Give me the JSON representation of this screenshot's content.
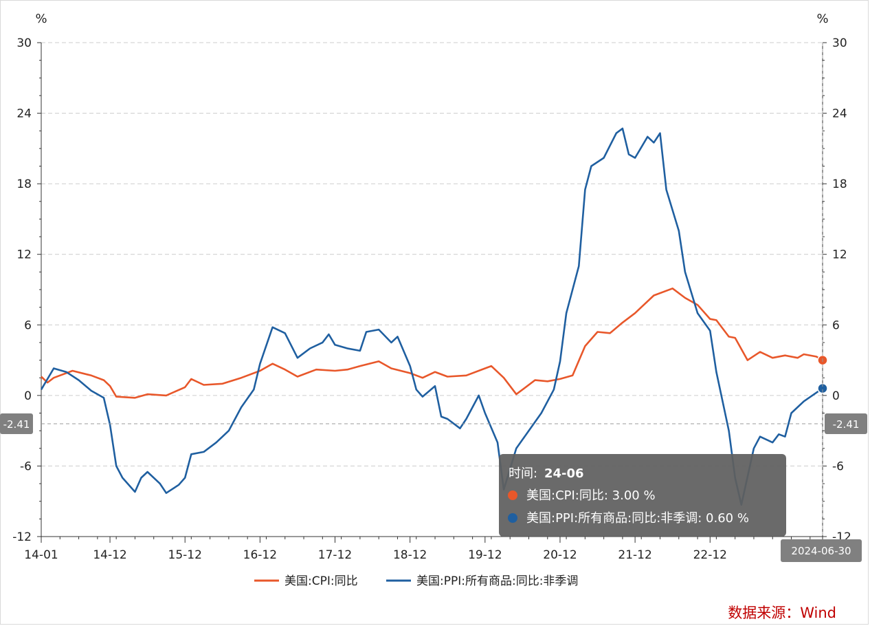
{
  "chart_data": {
    "type": "line",
    "unit_left": "%",
    "unit_right": "%",
    "yticks": [
      30,
      24,
      18,
      12,
      6,
      0,
      -6,
      -12
    ],
    "ylim": [
      -12,
      30
    ],
    "xlim": [
      "2014-01",
      "2024-06"
    ],
    "xticks": [
      {
        "label": "14-01",
        "x": "2014-01"
      },
      {
        "label": "14-12",
        "x": "2014-12"
      },
      {
        "label": "15-12",
        "x": "2015-12"
      },
      {
        "label": "16-12",
        "x": "2016-12"
      },
      {
        "label": "17-12",
        "x": "2017-12"
      },
      {
        "label": "18-12",
        "x": "2018-12"
      },
      {
        "label": "19-12",
        "x": "2019-12"
      },
      {
        "label": "20-12",
        "x": "2020-12"
      },
      {
        "label": "21-12",
        "x": "2021-12"
      },
      {
        "label": "22-12",
        "x": "2022-12"
      },
      {
        "label": "24-06",
        "x": "2024-06"
      }
    ],
    "grid": true,
    "legend": "bottom-center",
    "series": [
      {
        "name": "美国:CPI:同比",
        "color": "#e8572a",
        "points": [
          [
            "2014-01",
            1.6
          ],
          [
            "2014-02",
            1.1
          ],
          [
            "2014-03",
            1.5
          ],
          [
            "2014-06",
            2.1
          ],
          [
            "2014-09",
            1.7
          ],
          [
            "2014-11",
            1.3
          ],
          [
            "2014-12",
            0.8
          ],
          [
            "2015-01",
            -0.1
          ],
          [
            "2015-04",
            -0.2
          ],
          [
            "2015-06",
            0.1
          ],
          [
            "2015-09",
            0.0
          ],
          [
            "2015-12",
            0.7
          ],
          [
            "2016-01",
            1.4
          ],
          [
            "2016-03",
            0.9
          ],
          [
            "2016-06",
            1.0
          ],
          [
            "2016-09",
            1.5
          ],
          [
            "2016-12",
            2.1
          ],
          [
            "2017-02",
            2.7
          ],
          [
            "2017-04",
            2.2
          ],
          [
            "2017-06",
            1.6
          ],
          [
            "2017-09",
            2.2
          ],
          [
            "2017-12",
            2.1
          ],
          [
            "2018-02",
            2.2
          ],
          [
            "2018-04",
            2.5
          ],
          [
            "2018-07",
            2.9
          ],
          [
            "2018-09",
            2.3
          ],
          [
            "2018-12",
            1.9
          ],
          [
            "2019-02",
            1.5
          ],
          [
            "2019-04",
            2.0
          ],
          [
            "2019-06",
            1.6
          ],
          [
            "2019-09",
            1.7
          ],
          [
            "2019-12",
            2.3
          ],
          [
            "2020-01",
            2.5
          ],
          [
            "2020-03",
            1.5
          ],
          [
            "2020-05",
            0.1
          ],
          [
            "2020-08",
            1.3
          ],
          [
            "2020-10",
            1.2
          ],
          [
            "2020-12",
            1.4
          ],
          [
            "2021-02",
            1.7
          ],
          [
            "2021-04",
            4.2
          ],
          [
            "2021-06",
            5.4
          ],
          [
            "2021-08",
            5.3
          ],
          [
            "2021-10",
            6.2
          ],
          [
            "2021-12",
            7.0
          ],
          [
            "2022-01",
            7.5
          ],
          [
            "2022-03",
            8.5
          ],
          [
            "2022-06",
            9.1
          ],
          [
            "2022-08",
            8.3
          ],
          [
            "2022-10",
            7.7
          ],
          [
            "2022-12",
            6.5
          ],
          [
            "2023-01",
            6.4
          ],
          [
            "2023-03",
            5.0
          ],
          [
            "2023-04",
            4.9
          ],
          [
            "2023-06",
            3.0
          ],
          [
            "2023-08",
            3.7
          ],
          [
            "2023-10",
            3.2
          ],
          [
            "2023-12",
            3.4
          ],
          [
            "2024-02",
            3.2
          ],
          [
            "2024-03",
            3.5
          ],
          [
            "2024-05",
            3.3
          ],
          [
            "2024-06",
            3.0
          ]
        ]
      },
      {
        "name": "美国:PPI:所有商品:同比:非季调",
        "color": "#1f5fa0",
        "points": [
          [
            "2014-01",
            0.5
          ],
          [
            "2014-03",
            2.3
          ],
          [
            "2014-05",
            2.0
          ],
          [
            "2014-07",
            1.3
          ],
          [
            "2014-09",
            0.4
          ],
          [
            "2014-11",
            -0.2
          ],
          [
            "2014-12",
            -2.5
          ],
          [
            "2015-01",
            -6.0
          ],
          [
            "2015-02",
            -7.0
          ],
          [
            "2015-04",
            -8.2
          ],
          [
            "2015-05",
            -7.0
          ],
          [
            "2015-06",
            -6.5
          ],
          [
            "2015-08",
            -7.5
          ],
          [
            "2015-09",
            -8.3
          ],
          [
            "2015-11",
            -7.6
          ],
          [
            "2015-12",
            -7.0
          ],
          [
            "2016-01",
            -5.0
          ],
          [
            "2016-03",
            -4.8
          ],
          [
            "2016-05",
            -4.0
          ],
          [
            "2016-07",
            -3.0
          ],
          [
            "2016-09",
            -1.0
          ],
          [
            "2016-11",
            0.5
          ],
          [
            "2016-12",
            2.7
          ],
          [
            "2017-02",
            5.8
          ],
          [
            "2017-04",
            5.3
          ],
          [
            "2017-06",
            3.2
          ],
          [
            "2017-08",
            4.0
          ],
          [
            "2017-10",
            4.5
          ],
          [
            "2017-11",
            5.2
          ],
          [
            "2017-12",
            4.3
          ],
          [
            "2018-02",
            4.0
          ],
          [
            "2018-04",
            3.8
          ],
          [
            "2018-05",
            5.4
          ],
          [
            "2018-07",
            5.6
          ],
          [
            "2018-09",
            4.5
          ],
          [
            "2018-10",
            5.0
          ],
          [
            "2018-12",
            2.5
          ],
          [
            "2019-01",
            0.5
          ],
          [
            "2019-02",
            -0.1
          ],
          [
            "2019-04",
            0.8
          ],
          [
            "2019-05",
            -1.8
          ],
          [
            "2019-06",
            -2.0
          ],
          [
            "2019-08",
            -2.8
          ],
          [
            "2019-09",
            -2.0
          ],
          [
            "2019-11",
            0.0
          ],
          [
            "2019-12",
            -1.5
          ],
          [
            "2020-02",
            -4.0
          ],
          [
            "2020-03",
            -8.0
          ],
          [
            "2020-05",
            -4.5
          ],
          [
            "2020-07",
            -3.0
          ],
          [
            "2020-09",
            -1.5
          ],
          [
            "2020-11",
            0.5
          ],
          [
            "2020-12",
            2.9
          ],
          [
            "2021-01",
            7.0
          ],
          [
            "2021-03",
            11.0
          ],
          [
            "2021-04",
            17.5
          ],
          [
            "2021-05",
            19.5
          ],
          [
            "2021-07",
            20.2
          ],
          [
            "2021-09",
            22.3
          ],
          [
            "2021-10",
            22.7
          ],
          [
            "2021-11",
            20.5
          ],
          [
            "2021-12",
            20.2
          ],
          [
            "2022-02",
            22.0
          ],
          [
            "2022-03",
            21.5
          ],
          [
            "2022-04",
            22.3
          ],
          [
            "2022-05",
            17.5
          ],
          [
            "2022-07",
            14.0
          ],
          [
            "2022-08",
            10.5
          ],
          [
            "2022-10",
            7.0
          ],
          [
            "2022-12",
            5.5
          ],
          [
            "2023-01",
            2.0
          ],
          [
            "2023-03",
            -3.0
          ],
          [
            "2023-04",
            -7.0
          ],
          [
            "2023-05",
            -9.3
          ],
          [
            "2023-07",
            -4.5
          ],
          [
            "2023-08",
            -3.5
          ],
          [
            "2023-10",
            -4.0
          ],
          [
            "2023-11",
            -3.3
          ],
          [
            "2023-12",
            -3.5
          ],
          [
            "2024-01",
            -1.5
          ],
          [
            "2024-03",
            -0.5
          ],
          [
            "2024-06",
            0.6
          ]
        ]
      }
    ],
    "crosshair": {
      "y": -2.41,
      "y_label": "-2.41",
      "x": "2024-06",
      "x_label": "2024-06-30"
    },
    "tooltip": {
      "time_label": "时间: ",
      "time_value": "24-06",
      "rows": [
        {
          "label": "美国:CPI:同比: 3.00  %",
          "color": "#e8572a"
        },
        {
          "label": "美国:PPI:所有商品:同比:非季调: 0.60  %",
          "color": "#1f5fa0"
        }
      ]
    }
  },
  "source": "数据来源：Wind",
  "colors": {
    "grid": "#cccccc",
    "axis": "#333333",
    "tooltip_bg": "#5f5f5f",
    "badge_bg": "#808080"
  }
}
